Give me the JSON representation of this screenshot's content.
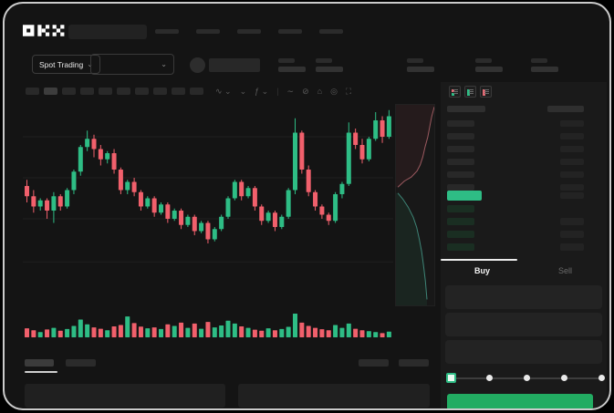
{
  "brand": {
    "logo_text": "OKX"
  },
  "header": {
    "market_type": "Spot Trading"
  },
  "colors": {
    "green": "#2ebd85",
    "red": "#f1606c",
    "buy_button": "#22ac62",
    "last_price_bg": "#2ebd85",
    "depth_ask_line": "#9c5a60",
    "depth_bid_line": "#3e8476"
  },
  "toolbar": {
    "icons": [
      {
        "name": "chart-style-icon",
        "glyph": "∿ ⌄"
      },
      {
        "name": "compare-chevron-icon",
        "glyph": "⌄"
      },
      {
        "name": "indicators-icon",
        "glyph": "ƒ ⌄"
      },
      {
        "name": "separator",
        "glyph": "|"
      },
      {
        "name": "trendline-icon",
        "glyph": "∼"
      },
      {
        "name": "drawing-tools-icon",
        "glyph": "⊘"
      },
      {
        "name": "screenshot-icon",
        "glyph": "⌂"
      },
      {
        "name": "chart-settings-icon",
        "glyph": "◎"
      },
      {
        "name": "fullscreen-icon",
        "glyph": "⛶"
      }
    ]
  },
  "orderbook": {
    "view_icons": [
      {
        "name": "book-combined-icon"
      },
      {
        "name": "book-bids-only-icon"
      },
      {
        "name": "book-asks-only-icon"
      }
    ],
    "asks": [
      {
        "amount": true
      },
      {
        "amount": true
      },
      {
        "amount": true
      },
      {
        "amount": true
      },
      {
        "amount": true
      },
      {
        "amount": true
      }
    ],
    "last_price_row": {
      "highlight": true,
      "amount": true
    },
    "bids": [
      {
        "amount": false
      },
      {
        "amount": true
      },
      {
        "amount": true
      },
      {
        "amount": true
      }
    ]
  },
  "trade_panel": {
    "tabs": [
      {
        "label": "Buy",
        "active": true
      },
      {
        "label": "Sell",
        "active": false
      }
    ],
    "input_count": 3,
    "slider": {
      "positions": 5,
      "active_index": 0
    }
  },
  "chart_data": {
    "type": "candlestick",
    "title": "",
    "xlabel": "",
    "ylabel": "",
    "axis_labels_visible": false,
    "grid": "faint-horizontal",
    "ylim": [
      0,
      100
    ],
    "candles_ohlc_normalized": [
      [
        60,
        63,
        52,
        55
      ],
      [
        55,
        58,
        47,
        50
      ],
      [
        50,
        54,
        48,
        53
      ],
      [
        53,
        54,
        44,
        48
      ],
      [
        48,
        57,
        42,
        55
      ],
      [
        55,
        56,
        48,
        50
      ],
      [
        50,
        59,
        49,
        58
      ],
      [
        58,
        68,
        56,
        67
      ],
      [
        67,
        80,
        65,
        79
      ],
      [
        79,
        87,
        77,
        83
      ],
      [
        83,
        85,
        74,
        78
      ],
      [
        78,
        80,
        70,
        73
      ],
      [
        73,
        77,
        71,
        76
      ],
      [
        76,
        78,
        66,
        68
      ],
      [
        68,
        69,
        56,
        58
      ],
      [
        58,
        63,
        56,
        62
      ],
      [
        62,
        64,
        55,
        57
      ],
      [
        57,
        58,
        48,
        50
      ],
      [
        50,
        55,
        49,
        54
      ],
      [
        54,
        55,
        45,
        47
      ],
      [
        47,
        52,
        46,
        51
      ],
      [
        51,
        52,
        42,
        44
      ],
      [
        44,
        49,
        43,
        48
      ],
      [
        48,
        49,
        39,
        41
      ],
      [
        41,
        46,
        40,
        45
      ],
      [
        45,
        46,
        36,
        38
      ],
      [
        38,
        43,
        37,
        42
      ],
      [
        42,
        43,
        32,
        34
      ],
      [
        34,
        40,
        33,
        39
      ],
      [
        39,
        46,
        38,
        45
      ],
      [
        45,
        55,
        44,
        54
      ],
      [
        54,
        63,
        53,
        62
      ],
      [
        62,
        63,
        53,
        55
      ],
      [
        55,
        60,
        54,
        59
      ],
      [
        59,
        60,
        48,
        50
      ],
      [
        50,
        51,
        41,
        43
      ],
      [
        43,
        48,
        42,
        47
      ],
      [
        47,
        48,
        38,
        40
      ],
      [
        40,
        46,
        39,
        45
      ],
      [
        45,
        59,
        44,
        58
      ],
      [
        58,
        93,
        56,
        86
      ],
      [
        86,
        87,
        66,
        68
      ],
      [
        68,
        70,
        55,
        57
      ],
      [
        57,
        58,
        48,
        50
      ],
      [
        50,
        51,
        44,
        46
      ],
      [
        46,
        47,
        41,
        43
      ],
      [
        43,
        57,
        42,
        56
      ],
      [
        56,
        62,
        54,
        61
      ],
      [
        61,
        91,
        60,
        86
      ],
      [
        86,
        88,
        78,
        80
      ],
      [
        80,
        83,
        71,
        73
      ],
      [
        73,
        84,
        72,
        83
      ],
      [
        83,
        96,
        82,
        92
      ],
      [
        92,
        94,
        81,
        84
      ],
      [
        84,
        97,
        83,
        94
      ]
    ],
    "volume_normalized": [
      38,
      30,
      22,
      33,
      40,
      28,
      35,
      48,
      75,
      55,
      42,
      36,
      30,
      46,
      52,
      88,
      60,
      45,
      38,
      42,
      35,
      55,
      48,
      62,
      40,
      58,
      36,
      65,
      42,
      50,
      70,
      58,
      46,
      40,
      32,
      28,
      38,
      30,
      35,
      44,
      100,
      62,
      48,
      40,
      34,
      30,
      52,
      40,
      58,
      36,
      30,
      26,
      22,
      18,
      24
    ],
    "gridline_levels": [
      84,
      64,
      44,
      23
    ],
    "depth": {
      "asks_line_pct": [
        [
          100,
          1
        ],
        [
          93,
          6
        ],
        [
          88,
          11
        ],
        [
          83,
          16
        ],
        [
          76,
          21
        ],
        [
          70,
          26
        ],
        [
          63,
          30
        ],
        [
          55,
          33
        ],
        [
          40,
          36
        ],
        [
          22,
          38
        ],
        [
          5,
          41
        ]
      ],
      "bids_line_pct": [
        [
          5,
          44
        ],
        [
          18,
          47
        ],
        [
          32,
          51
        ],
        [
          45,
          56
        ],
        [
          54,
          61
        ],
        [
          61,
          67
        ],
        [
          67,
          73
        ],
        [
          72,
          80
        ],
        [
          77,
          88
        ],
        [
          81,
          97
        ]
      ]
    }
  }
}
